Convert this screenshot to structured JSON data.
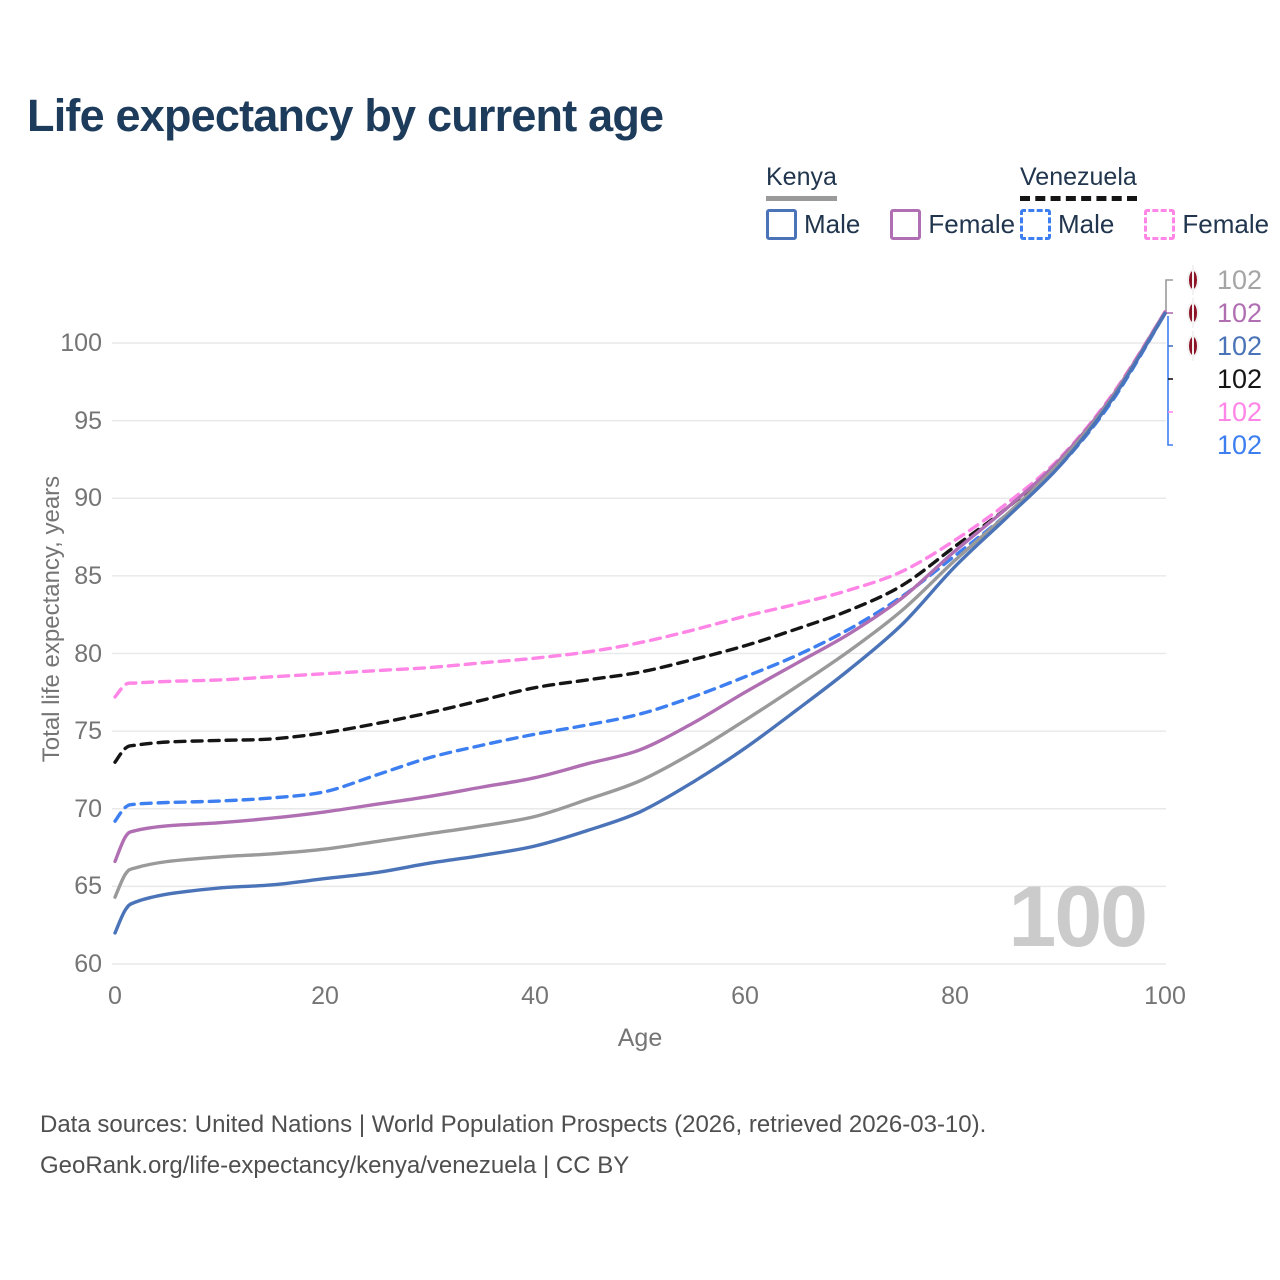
{
  "title": "Life expectancy by current age",
  "legend": {
    "kenya": {
      "name": "Kenya",
      "male": "Male",
      "female": "Female"
    },
    "venezuela": {
      "name": "Venezuela",
      "male": "Male",
      "female": "Female"
    }
  },
  "colors": {
    "kenya_male": "#4a73b8",
    "kenya_female": "#b06fb2",
    "kenya_total": "#9a9a9a",
    "venezuela_male": "#3d7ff0",
    "venezuela_female": "#ff85e6",
    "venezuela_total": "#151515",
    "title_text": "#1d3b5a",
    "axis_text": "#757575",
    "grid": "#e9e9e9",
    "watermark": "#cbcbcb",
    "end_label_gray": "#a5a5a5"
  },
  "watermark_age": "100",
  "end_labels": [
    {
      "flag": "kenya",
      "series": "Kenya — Total",
      "label": "102",
      "color": "#a5a5a5"
    },
    {
      "flag": "kenya",
      "series": "Kenya — Female",
      "label": "102",
      "color": "#b06fb2"
    },
    {
      "flag": "kenya",
      "series": "Kenya — Male",
      "label": "102",
      "color": "#4a73b8"
    },
    {
      "flag": "venezuela",
      "series": "Venezuela — Total",
      "label": "102",
      "color": "#151515"
    },
    {
      "flag": "venezuela",
      "series": "Venezuela — Female",
      "label": "102",
      "color": "#ff85e6"
    },
    {
      "flag": "venezuela",
      "series": "Venezuela — Male",
      "label": "102",
      "color": "#3d7ff0"
    }
  ],
  "footer": {
    "line1": "Data sources: United Nations | World Population Prospects (2026, retrieved 2026-03-10).",
    "line2": "GeoRank.org/life-expectancy/kenya/venezuela | CC BY"
  },
  "chart_data": {
    "type": "line",
    "title": "Life expectancy by current age",
    "xlabel": "Age",
    "ylabel": "Total life expectancy, years",
    "xlim": [
      0,
      100
    ],
    "ylim": [
      60,
      104
    ],
    "x_ticks": [
      0,
      20,
      40,
      60,
      80,
      100
    ],
    "y_ticks": [
      60,
      65,
      70,
      75,
      80,
      85,
      90,
      95,
      100
    ],
    "grid": "horizontal-only",
    "legend_position": "top-right",
    "x": [
      0,
      1,
      2,
      5,
      10,
      15,
      20,
      25,
      30,
      35,
      40,
      45,
      50,
      55,
      60,
      65,
      70,
      75,
      80,
      85,
      90,
      95,
      100
    ],
    "series": [
      {
        "name": "Venezuela — Female",
        "country": "Venezuela",
        "sex": "Female",
        "dashed": true,
        "color": "#ff85e6",
        "values": [
          77.2,
          78.0,
          78.1,
          78.2,
          78.3,
          78.5,
          78.7,
          78.9,
          79.1,
          79.4,
          79.7,
          80.1,
          80.7,
          81.5,
          82.4,
          83.2,
          84.1,
          85.3,
          87.3,
          89.7,
          92.6,
          96.7,
          102.0
        ]
      },
      {
        "name": "Venezuela — Total",
        "country": "Venezuela",
        "sex": "Both",
        "dashed": true,
        "color": "#151515",
        "values": [
          73.0,
          73.9,
          74.1,
          74.3,
          74.4,
          74.5,
          74.9,
          75.5,
          76.2,
          77.0,
          77.8,
          78.3,
          78.8,
          79.6,
          80.5,
          81.6,
          82.8,
          84.4,
          86.9,
          89.4,
          92.4,
          96.5,
          101.9
        ]
      },
      {
        "name": "Venezuela — Male",
        "country": "Venezuela",
        "sex": "Male",
        "dashed": true,
        "color": "#3d7ff0",
        "values": [
          69.2,
          70.1,
          70.3,
          70.4,
          70.5,
          70.7,
          71.1,
          72.2,
          73.3,
          74.1,
          74.8,
          75.4,
          76.1,
          77.2,
          78.5,
          79.9,
          81.6,
          83.7,
          86.3,
          89.0,
          92.1,
          96.3,
          101.9
        ]
      },
      {
        "name": "Kenya — Female",
        "country": "Kenya",
        "sex": "Female",
        "dashed": false,
        "color": "#b06fb2",
        "values": [
          66.6,
          68.2,
          68.6,
          68.9,
          69.1,
          69.4,
          69.8,
          70.3,
          70.8,
          71.4,
          72.0,
          72.9,
          73.8,
          75.5,
          77.5,
          79.4,
          81.3,
          83.6,
          86.6,
          89.4,
          92.5,
          96.6,
          102.0
        ]
      },
      {
        "name": "Kenya — Total",
        "country": "Kenya",
        "sex": "Both",
        "dashed": false,
        "color": "#9a9a9a",
        "values": [
          64.3,
          65.8,
          66.2,
          66.6,
          66.9,
          67.1,
          67.4,
          67.9,
          68.4,
          68.9,
          69.5,
          70.6,
          71.8,
          73.6,
          75.7,
          77.9,
          80.2,
          82.8,
          86.0,
          89.0,
          92.3,
          96.5,
          101.9
        ]
      },
      {
        "name": "Kenya — Male",
        "country": "Kenya",
        "sex": "Male",
        "dashed": false,
        "color": "#4a73b8",
        "values": [
          62.0,
          63.5,
          64.0,
          64.5,
          64.9,
          65.1,
          65.5,
          65.9,
          66.5,
          67.0,
          67.6,
          68.6,
          69.8,
          71.7,
          73.9,
          76.4,
          79.0,
          81.9,
          85.6,
          88.8,
          92.1,
          96.4,
          101.9
        ]
      }
    ]
  }
}
